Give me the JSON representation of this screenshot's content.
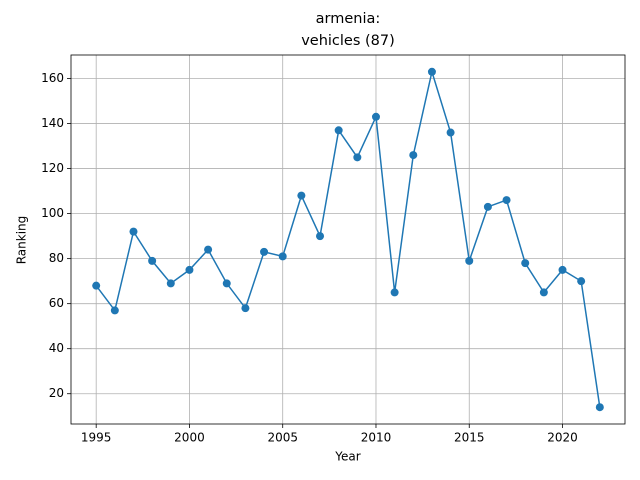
{
  "chart_data": {
    "type": "line",
    "title": "armenia:\nvehicles (87)",
    "xlabel": "Year",
    "ylabel": "Ranking",
    "x": [
      1995,
      1996,
      1997,
      1998,
      1999,
      2000,
      2001,
      2002,
      2003,
      2004,
      2005,
      2006,
      2007,
      2008,
      2009,
      2010,
      2011,
      2012,
      2013,
      2014,
      2015,
      2016,
      2017,
      2018,
      2019,
      2020,
      2021,
      2022
    ],
    "series": [
      {
        "name": "vehicles",
        "color": "#1f77b4",
        "values": [
          68,
          57,
          92,
          79,
          69,
          75,
          84,
          69,
          58,
          83,
          81,
          108,
          90,
          137,
          125,
          143,
          65,
          126,
          163,
          136,
          79,
          103,
          106,
          78,
          65,
          75,
          70,
          14
        ]
      }
    ],
    "xlim": [
      1993.65,
      2023.35
    ],
    "xticks": [
      1995,
      2000,
      2005,
      2010,
      2015,
      2020
    ],
    "ylim": [
      6.55,
      170.45
    ],
    "yticks": [
      20,
      40,
      60,
      80,
      100,
      120,
      140,
      160
    ],
    "grid": true
  }
}
